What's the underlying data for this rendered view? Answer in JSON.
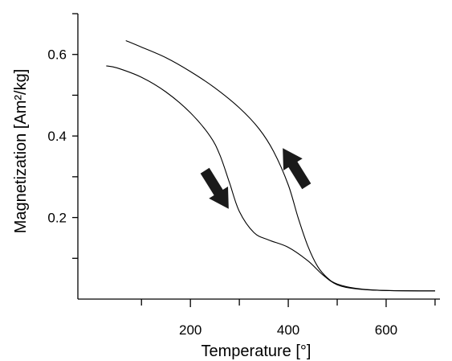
{
  "chart_data": {
    "type": "line",
    "title": "",
    "xlabel": "Temperature [°]",
    "ylabel": "Magnetization [Am²/kg]",
    "xlim": [
      -30,
      710
    ],
    "ylim": [
      0,
      0.7
    ],
    "x_ticks_major": [
      200,
      400,
      600
    ],
    "x_ticks_minor": [
      100,
      300,
      500,
      700
    ],
    "y_ticks_major": [
      0.2,
      0.4,
      0.6
    ],
    "y_ticks_minor": [
      0.1,
      0.3,
      0.5,
      0.7
    ],
    "grid": false,
    "series": [
      {
        "name": "",
        "direction": "heating",
        "points": [
          [
            28,
            0.572
          ],
          [
            50,
            0.567
          ],
          [
            100,
            0.544
          ],
          [
            150,
            0.508
          ],
          [
            200,
            0.457
          ],
          [
            240,
            0.4
          ],
          [
            260,
            0.354
          ],
          [
            280,
            0.285
          ],
          [
            300,
            0.215
          ],
          [
            330,
            0.163
          ],
          [
            360,
            0.145
          ],
          [
            400,
            0.127
          ],
          [
            440,
            0.094
          ],
          [
            470,
            0.06
          ],
          [
            500,
            0.035
          ],
          [
            540,
            0.025
          ],
          [
            600,
            0.021
          ],
          [
            700,
            0.02
          ]
        ]
      },
      {
        "name": "",
        "direction": "cooling",
        "points": [
          [
            68,
            0.634
          ],
          [
            100,
            0.618
          ],
          [
            150,
            0.592
          ],
          [
            200,
            0.558
          ],
          [
            250,
            0.518
          ],
          [
            300,
            0.469
          ],
          [
            340,
            0.418
          ],
          [
            370,
            0.362
          ],
          [
            400,
            0.28
          ],
          [
            420,
            0.2
          ],
          [
            440,
            0.13
          ],
          [
            460,
            0.08
          ],
          [
            480,
            0.052
          ],
          [
            500,
            0.037
          ],
          [
            540,
            0.026
          ],
          [
            600,
            0.021
          ],
          [
            700,
            0.02
          ]
        ]
      }
    ],
    "annotations": [
      {
        "type": "arrow",
        "direction": "down-right",
        "meaning": "heating"
      },
      {
        "type": "arrow",
        "direction": "up-left",
        "meaning": "cooling"
      }
    ]
  }
}
